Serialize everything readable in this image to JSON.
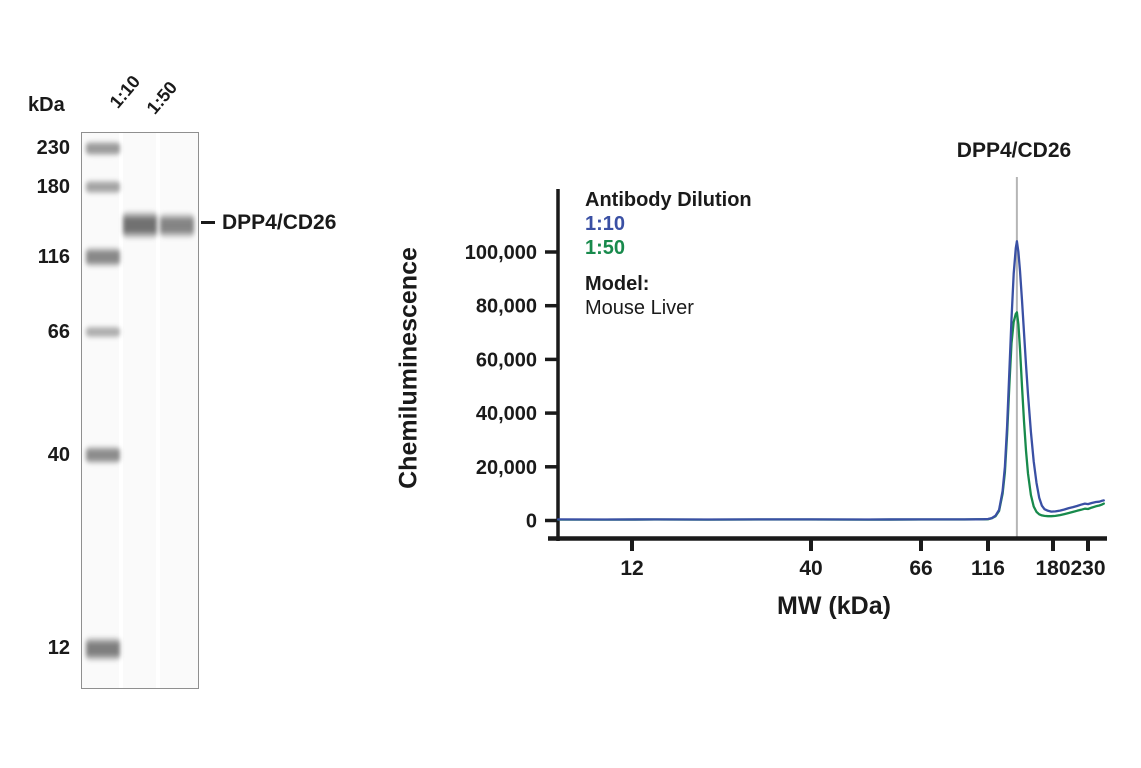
{
  "blot": {
    "kda_unit": "kDa",
    "lane_labels": [
      "1:10",
      "1:50"
    ],
    "marker_labels": [
      "230",
      "180",
      "116",
      "66",
      "40",
      "12"
    ],
    "band_annotation": "DPP4/CD26"
  },
  "chart_data": {
    "type": "line",
    "title": "DPP4/CD26",
    "xlabel": "MW (kDa)",
    "ylabel": "Chemiluminescence",
    "x_scale": "log",
    "grid": false,
    "legend_position": "upper-left",
    "x_ticks": [
      12,
      40,
      66,
      116,
      180,
      230
    ],
    "y_ticks": [
      0,
      20000,
      40000,
      60000,
      80000,
      100000
    ],
    "y_tick_labels": [
      "0",
      "20,000",
      "40,000",
      "60,000",
      "80,000",
      "100,000"
    ],
    "xlim": [
      7,
      257
    ],
    "ylim": [
      0,
      123000
    ],
    "annotation_line_mw": 141,
    "legend": {
      "title": "Antibody Dilution",
      "entries": [
        {
          "label": "1:10",
          "color": "#3A50A4"
        },
        {
          "label": "1:50",
          "color": "#188A4C"
        }
      ],
      "model_label": "Model:",
      "model_value": "Mouse Liver"
    },
    "series": [
      {
        "name": "1:10",
        "color": "#3A50A4",
        "peak": {
          "mw": 141,
          "value": 104000
        },
        "points": [
          [
            7.3,
            400
          ],
          [
            10,
            380
          ],
          [
            14,
            400
          ],
          [
            20,
            390
          ],
          [
            28,
            400
          ],
          [
            40,
            420
          ],
          [
            52,
            390
          ],
          [
            66,
            420
          ],
          [
            80,
            400
          ],
          [
            95,
            420
          ],
          [
            105,
            450
          ],
          [
            112,
            480
          ],
          [
            116,
            550
          ],
          [
            119,
            900
          ],
          [
            122,
            1800
          ],
          [
            125,
            4000
          ],
          [
            128,
            11000
          ],
          [
            130,
            20000
          ],
          [
            132,
            35000
          ],
          [
            134,
            55000
          ],
          [
            136,
            75000
          ],
          [
            138,
            92000
          ],
          [
            140,
            101500
          ],
          [
            141,
            104000
          ],
          [
            142.5,
            100000
          ],
          [
            144,
            93000
          ],
          [
            146,
            82000
          ],
          [
            148,
            70000
          ],
          [
            150,
            58000
          ],
          [
            152,
            47000
          ],
          [
            155,
            33000
          ],
          [
            158,
            22000
          ],
          [
            161,
            14000
          ],
          [
            164,
            8500
          ],
          [
            167,
            5500
          ],
          [
            170,
            4200
          ],
          [
            174,
            3600
          ],
          [
            178,
            3300
          ],
          [
            183,
            3400
          ],
          [
            189,
            3700
          ],
          [
            195,
            4100
          ],
          [
            201,
            4600
          ],
          [
            207,
            5000
          ],
          [
            213,
            5400
          ],
          [
            219,
            5900
          ],
          [
            225,
            6300
          ],
          [
            230,
            6100
          ],
          [
            236,
            6500
          ],
          [
            243,
            6900
          ],
          [
            249,
            7000
          ],
          [
            253,
            7300
          ],
          [
            257,
            7500
          ]
        ]
      },
      {
        "name": "1:50",
        "color": "#188A4C",
        "peak": {
          "mw": 141,
          "value": 77500
        },
        "points": [
          [
            7.3,
            350
          ],
          [
            10,
            340
          ],
          [
            14,
            360
          ],
          [
            20,
            350
          ],
          [
            28,
            360
          ],
          [
            40,
            380
          ],
          [
            52,
            350
          ],
          [
            66,
            380
          ],
          [
            80,
            360
          ],
          [
            95,
            380
          ],
          [
            105,
            410
          ],
          [
            112,
            440
          ],
          [
            116,
            500
          ],
          [
            119,
            820
          ],
          [
            122,
            1600
          ],
          [
            125,
            3600
          ],
          [
            128,
            10000
          ],
          [
            130,
            18000
          ],
          [
            132,
            32000
          ],
          [
            134,
            50000
          ],
          [
            136,
            66000
          ],
          [
            138,
            74000
          ],
          [
            140,
            77000
          ],
          [
            141,
            77500
          ],
          [
            142.5,
            73000
          ],
          [
            144,
            64000
          ],
          [
            146,
            50000
          ],
          [
            148,
            37000
          ],
          [
            150,
            26000
          ],
          [
            152,
            17500
          ],
          [
            155,
            9500
          ],
          [
            158,
            5200
          ],
          [
            161,
            3200
          ],
          [
            164,
            2300
          ],
          [
            167,
            1900
          ],
          [
            170,
            1700
          ],
          [
            174,
            1600
          ],
          [
            178,
            1600
          ],
          [
            183,
            1700
          ],
          [
            189,
            2000
          ],
          [
            195,
            2400
          ],
          [
            201,
            2800
          ],
          [
            207,
            3200
          ],
          [
            213,
            3600
          ],
          [
            219,
            4000
          ],
          [
            225,
            4400
          ],
          [
            230,
            4300
          ],
          [
            236,
            4800
          ],
          [
            243,
            5300
          ],
          [
            249,
            5600
          ],
          [
            253,
            5900
          ],
          [
            257,
            6300
          ]
        ]
      }
    ]
  },
  "colors": {
    "axis": "#1a1a1a",
    "annotation_line": "#b5b5b5",
    "accent_blue": "#3A50A4",
    "accent_green": "#188A4C"
  }
}
